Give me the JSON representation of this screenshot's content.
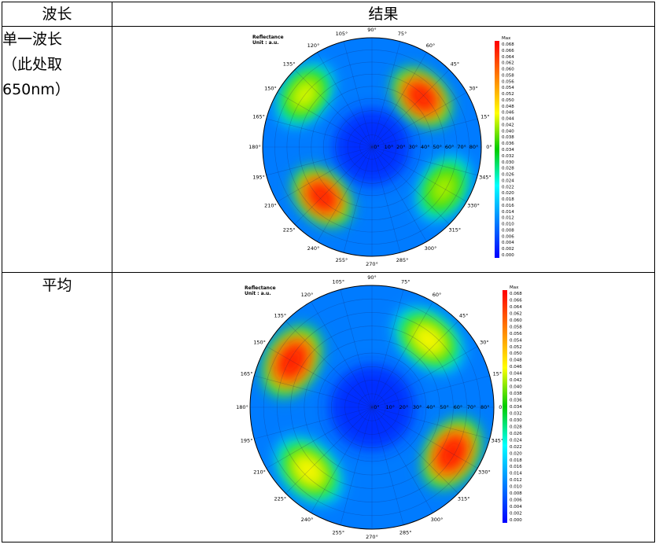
{
  "table": {
    "header": {
      "col1": "波长",
      "col2": "结果"
    },
    "rows": [
      {
        "label_lines": [
          "单一波长",
          "（此处取",
          "650nm）"
        ]
      },
      {
        "label_lines": [
          "平均"
        ]
      }
    ]
  },
  "chart_data": [
    {
      "type": "heatmap",
      "projection": "polar",
      "title": "Reflectance",
      "subtitle": "Unit : a.u.",
      "angle_labels": [
        "0°",
        "15°",
        "30°",
        "45°",
        "60°",
        "75°",
        "90°",
        "105°",
        "120°",
        "135°",
        "150°",
        "165°",
        "180°",
        "195°",
        "210°",
        "225°",
        "240°",
        "255°",
        "270°",
        "285°",
        "300°",
        "315°",
        "330°",
        "345°"
      ],
      "radial_labels": [
        "0°",
        "10°",
        "20°",
        "30°",
        "40°",
        "50°",
        "60°",
        "70°",
        "80°"
      ],
      "colorbar": {
        "max_label": "Max",
        "ticks": [
          "0.068",
          "0.066",
          "0.064",
          "0.062",
          "0.060",
          "0.058",
          "0.056",
          "0.054",
          "0.052",
          "0.050",
          "0.048",
          "0.046",
          "0.044",
          "0.042",
          "0.040",
          "0.038",
          "0.036",
          "0.034",
          "0.032",
          "0.030",
          "0.028",
          "0.026",
          "0.024",
          "0.022",
          "0.020",
          "0.018",
          "0.016",
          "0.014",
          "0.012",
          "0.010",
          "0.008",
          "0.006",
          "0.004",
          "0.002",
          "0.000"
        ],
        "colors": [
          "#ff0000",
          "#ff8000",
          "#ffff00",
          "#00cc00",
          "#00ffff",
          "#0080ff",
          "#0000ff"
        ]
      },
      "zlim": [
        0,
        0.068
      ],
      "hotspots": [
        {
          "azimuth_deg": 45,
          "radius_deg": 58,
          "value": 0.066
        },
        {
          "azimuth_deg": 225,
          "radius_deg": 58,
          "value": 0.066
        },
        {
          "azimuth_deg": 142,
          "radius_deg": 70,
          "value": 0.044
        },
        {
          "azimuth_deg": 330,
          "radius_deg": 68,
          "value": 0.042
        }
      ]
    },
    {
      "type": "heatmap",
      "projection": "polar",
      "title": "Reflectance",
      "subtitle": "Unit : a.u.",
      "angle_labels": [
        "0°",
        "15°",
        "30°",
        "45°",
        "60°",
        "75°",
        "90°",
        "105°",
        "120°",
        "135°",
        "150°",
        "165°",
        "180°",
        "195°",
        "210°",
        "225°",
        "240°",
        "255°",
        "270°",
        "285°",
        "300°",
        "315°",
        "330°",
        "345°"
      ],
      "radial_labels": [
        "0°",
        "10°",
        "20°",
        "30°",
        "40°",
        "50°",
        "60°",
        "70°",
        "80°"
      ],
      "colorbar": {
        "max_label": "Max",
        "ticks": [
          "0.068",
          "0.066",
          "0.064",
          "0.062",
          "0.060",
          "0.058",
          "0.056",
          "0.054",
          "0.052",
          "0.050",
          "0.048",
          "0.046",
          "0.044",
          "0.042",
          "0.040",
          "0.038",
          "0.036",
          "0.034",
          "0.032",
          "0.030",
          "0.028",
          "0.026",
          "0.024",
          "0.022",
          "0.020",
          "0.018",
          "0.016",
          "0.014",
          "0.012",
          "0.010",
          "0.008",
          "0.006",
          "0.004",
          "0.002",
          "0.000"
        ],
        "colors": [
          "#ff0000",
          "#ff8000",
          "#ffff00",
          "#00cc00",
          "#00ffff",
          "#0080ff",
          "#0000ff"
        ]
      },
      "zlim": [
        0,
        0.068
      ],
      "hotspots": [
        {
          "azimuth_deg": 150,
          "radius_deg": 68,
          "value": 0.066
        },
        {
          "azimuth_deg": 330,
          "radius_deg": 68,
          "value": 0.066
        },
        {
          "azimuth_deg": 50,
          "radius_deg": 65,
          "value": 0.046
        },
        {
          "azimuth_deg": 225,
          "radius_deg": 66,
          "value": 0.046
        }
      ]
    }
  ]
}
